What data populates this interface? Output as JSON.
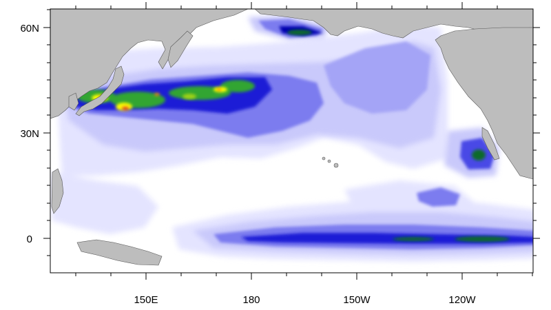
{
  "map": {
    "y_axis_labels": [
      "60N",
      "30N",
      "0"
    ],
    "x_axis_labels": [
      "150E",
      "180",
      "150W",
      "120W"
    ],
    "colors": {
      "land": "#bdbdbd",
      "coast": "#555555",
      "ocean": "#ffffff",
      "frame": "#000000",
      "field_levels": [
        "#e4e4ff",
        "#c9c9fb",
        "#a4a4f6",
        "#7b7bef",
        "#4a4ae6",
        "#1c1cd6",
        "#0000b0",
        "#0b6a2a",
        "#33a532",
        "#9ed214",
        "#ffff00",
        "#ff8800",
        "#e61a1a"
      ]
    }
  }
}
